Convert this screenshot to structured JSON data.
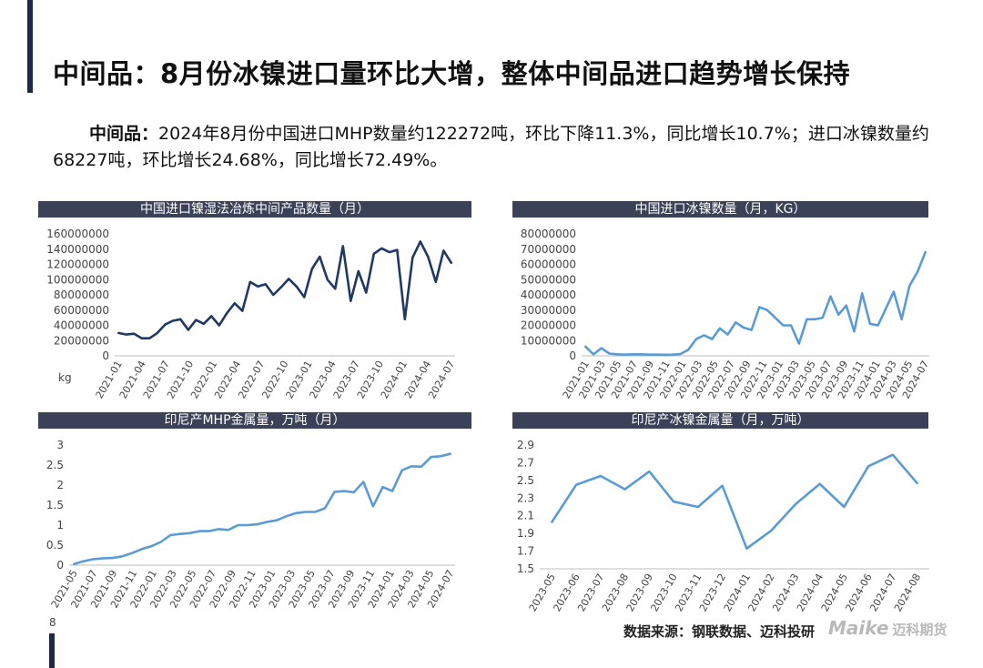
{
  "page": {
    "title": "中间品：8月份冰镍进口量环比大增，整体中间品进口趋势增长保持",
    "summary_lead": "中间品：",
    "summary_text": "2024年8月份中国进口MHP数量约122272吨，环比下降11.3%，同比增长10.7%；进口冰镍数量约68227吨，环比增长24.68%，同比增长72.49%。",
    "page_number": "8",
    "source": "数据来源：钢联数据、迈科投研",
    "logo_text": "Maike",
    "logo_cn": "迈科期货"
  },
  "chart_data": [
    {
      "id": "c1",
      "type": "line",
      "title": "中国进口镍湿法冶炼中间产品数量（月）",
      "unit_label": "kg",
      "color": "#1f3864",
      "ylim": [
        0,
        160000000
      ],
      "yticks": [
        "0",
        "20000000",
        "40000000",
        "60000000",
        "80000000",
        "100000000",
        "120000000",
        "140000000",
        "160000000"
      ],
      "xticks": [
        "2021-01",
        "2021-04",
        "2021-07",
        "2021-10",
        "2022-01",
        "2022-04",
        "2022-07",
        "2022-10",
        "2023-01",
        "2023-04",
        "2023-07",
        "2023-10",
        "2024-01",
        "2024-04",
        "2024-07"
      ],
      "values": [
        30000000,
        28000000,
        29000000,
        23000000,
        23000000,
        30000000,
        41000000,
        46000000,
        48000000,
        34000000,
        47000000,
        42000000,
        52000000,
        40000000,
        56000000,
        69000000,
        59000000,
        97000000,
        91000000,
        94000000,
        80000000,
        90000000,
        101000000,
        91000000,
        77000000,
        114000000,
        130000000,
        100000000,
        88000000,
        144000000,
        72000000,
        111000000,
        83000000,
        134000000,
        141000000,
        136000000,
        139000000,
        48000000,
        129000000,
        150000000,
        130000000,
        97000000,
        138000000,
        122000000
      ]
    },
    {
      "id": "c2",
      "type": "line",
      "title": "中国进口冰镍数量（月，KG）",
      "color": "#5b9bd5",
      "ylim": [
        0,
        80000000
      ],
      "yticks": [
        "0",
        "10000000",
        "20000000",
        "30000000",
        "40000000",
        "50000000",
        "60000000",
        "70000000",
        "80000000"
      ],
      "xticks": [
        "2021-01",
        "2021-03",
        "2021-05",
        "2021-07",
        "2021-09",
        "2021-11",
        "2022-01",
        "2022-03",
        "2022-05",
        "2022-07",
        "2022-09",
        "2022-11",
        "2023-01",
        "2023-03",
        "2023-05",
        "2023-07",
        "2023-09",
        "2023-11",
        "2024-01",
        "2024-03",
        "2024-05",
        "2024-07"
      ],
      "values": [
        6000000,
        1000000,
        5000000,
        1500000,
        1000000,
        800000,
        1000000,
        1000000,
        800000,
        800000,
        700000,
        800000,
        1200000,
        4000000,
        11000000,
        13500000,
        11000000,
        18000000,
        14000000,
        22000000,
        18500000,
        17000000,
        32000000,
        30000000,
        25000000,
        20000000,
        20000000,
        8000000,
        24000000,
        24000000,
        25000000,
        39000000,
        27000000,
        33000000,
        16000000,
        41000000,
        21000000,
        20000000,
        31000000,
        42000000,
        24000000,
        46000000,
        55000000,
        68000000
      ]
    },
    {
      "id": "c3",
      "type": "line",
      "title": "印尼产MHP金属量，万吨（月）",
      "color": "#5b9bd5",
      "ylim": [
        0,
        3
      ],
      "yticks": [
        "0",
        "0.5",
        "1",
        "1.5",
        "2",
        "2.5",
        "3"
      ],
      "xticks": [
        "2021-05",
        "2021-07",
        "2021-09",
        "2021-11",
        "2022-01",
        "2022-03",
        "2022-05",
        "2022-07",
        "2022-09",
        "2022-11",
        "2023-01",
        "2023-03",
        "2023-05",
        "2023-07",
        "2023-09",
        "2023-11",
        "2024-01",
        "2024-03",
        "2024-05",
        "2024-07"
      ],
      "values": [
        0.03,
        0.1,
        0.15,
        0.17,
        0.18,
        0.22,
        0.3,
        0.4,
        0.47,
        0.58,
        0.75,
        0.78,
        0.8,
        0.85,
        0.85,
        0.9,
        0.88,
        1.0,
        1.0,
        1.02,
        1.08,
        1.12,
        1.22,
        1.3,
        1.33,
        1.33,
        1.42,
        1.83,
        1.85,
        1.82,
        2.08,
        1.47,
        1.95,
        1.85,
        2.37,
        2.47,
        2.46,
        2.7,
        2.72,
        2.78
      ]
    },
    {
      "id": "c4",
      "type": "line",
      "title": "印尼产冰镍金属量（月，万吨）",
      "color": "#5b9bd5",
      "ylim": [
        1.5,
        2.9
      ],
      "yticks": [
        "1.5",
        "1.7",
        "1.9",
        "2.1",
        "2.3",
        "2.5",
        "2.7",
        "2.9"
      ],
      "xticks": [
        "2023-05",
        "2023-06",
        "2023-07",
        "2023-08",
        "2023-09",
        "2023-10",
        "2023-11",
        "2023-12",
        "2024-01",
        "2024-02",
        "2024-03",
        "2024-04",
        "2024-05",
        "2024-06",
        "2024-07",
        "2024-08"
      ],
      "values": [
        2.03,
        2.45,
        2.55,
        2.4,
        2.6,
        2.26,
        2.2,
        2.44,
        1.73,
        1.93,
        2.23,
        2.46,
        2.2,
        2.66,
        2.79,
        2.47
      ]
    }
  ]
}
